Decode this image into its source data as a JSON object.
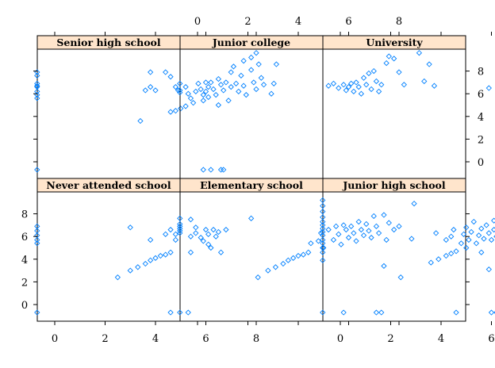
{
  "chart_data": {
    "type": "scatter",
    "layout": "trellis 3x2",
    "xlim": [
      -1,
      9.5
    ],
    "ylim": [
      -1,
      9.6
    ],
    "ticks": [
      0,
      2,
      4,
      6,
      8
    ],
    "marker": "diamond",
    "point_color": "#0080ff",
    "strip_color": "#ffe5cc",
    "panels": [
      {
        "title": "Senior high school",
        "points": [
          [
            -0.7,
            7.9
          ],
          [
            -0.7,
            7.6
          ],
          [
            -0.7,
            6.9
          ],
          [
            -0.7,
            6.7
          ],
          [
            -0.7,
            6.6
          ],
          [
            -0.7,
            6.2
          ],
          [
            -0.7,
            5.9
          ],
          [
            -0.7,
            5.6
          ],
          [
            -0.7,
            -0.7
          ],
          [
            3.4,
            3.6
          ],
          [
            4.6,
            4.4
          ],
          [
            4.8,
            4.5
          ],
          [
            5.0,
            4.7
          ],
          [
            5.2,
            4.9
          ],
          [
            3.6,
            6.3
          ],
          [
            3.8,
            6.6
          ],
          [
            4.0,
            6.3
          ],
          [
            3.8,
            7.9
          ],
          [
            4.4,
            7.9
          ],
          [
            4.6,
            7.5
          ],
          [
            4.8,
            6.6
          ],
          [
            4.9,
            6.3
          ],
          [
            5.2,
            6.6
          ],
          [
            5.3,
            6.0
          ],
          [
            5.4,
            5.6
          ],
          [
            5.5,
            5.2
          ],
          [
            5.6,
            6.2
          ],
          [
            5.7,
            6.9
          ],
          [
            5.8,
            6.4
          ],
          [
            5.9,
            5.9
          ],
          [
            5.9,
            5.4
          ],
          [
            6.0,
            7.0
          ],
          [
            6.0,
            6.2
          ],
          [
            6.1,
            6.6
          ],
          [
            6.1,
            5.7
          ],
          [
            6.2,
            7.0
          ],
          [
            6.3,
            6.4
          ],
          [
            6.4,
            5.9
          ],
          [
            6.5,
            5.0
          ],
          [
            6.5,
            7.3
          ],
          [
            6.6,
            6.8
          ],
          [
            6.7,
            6.3
          ],
          [
            6.8,
            7.0
          ],
          [
            6.9,
            5.4
          ],
          [
            7.0,
            6.6
          ],
          [
            7.0,
            7.9
          ],
          [
            7.1,
            8.4
          ],
          [
            7.2,
            6.9
          ],
          [
            7.3,
            6.2
          ],
          [
            7.4,
            7.6
          ],
          [
            7.5,
            8.9
          ],
          [
            7.5,
            6.7
          ],
          [
            7.6,
            5.9
          ],
          [
            7.8,
            9.2
          ],
          [
            7.8,
            8.1
          ],
          [
            7.9,
            7.0
          ],
          [
            8.0,
            6.4
          ],
          [
            8.0,
            9.6
          ],
          [
            8.1,
            8.6
          ],
          [
            8.2,
            7.4
          ],
          [
            8.3,
            6.8
          ],
          [
            8.6,
            6.0
          ],
          [
            8.8,
            8.6
          ],
          [
            8.7,
            6.9
          ],
          [
            5.9,
            -0.7
          ],
          [
            6.2,
            -0.7
          ],
          [
            6.6,
            -0.7
          ],
          [
            6.7,
            -0.7
          ]
        ]
      },
      {
        "title": "Junior college",
        "points": [
          [
            -0.7,
            6.9
          ],
          [
            -0.7,
            6.3
          ],
          [
            -0.7,
            6.1
          ],
          [
            5.2,
            6.7
          ],
          [
            5.4,
            6.9
          ],
          [
            5.6,
            6.5
          ],
          [
            5.8,
            6.8
          ],
          [
            5.9,
            6.3
          ],
          [
            6.0,
            6.6
          ],
          [
            6.1,
            6.9
          ],
          [
            6.2,
            6.2
          ],
          [
            6.3,
            7.0
          ],
          [
            6.4,
            6.6
          ],
          [
            6.5,
            6.0
          ],
          [
            6.6,
            7.4
          ],
          [
            6.7,
            6.8
          ],
          [
            6.8,
            7.8
          ],
          [
            6.9,
            6.4
          ],
          [
            7.0,
            8.0
          ],
          [
            7.1,
            7.1
          ],
          [
            7.2,
            6.2
          ],
          [
            7.3,
            6.8
          ],
          [
            7.5,
            8.7
          ],
          [
            7.6,
            9.3
          ],
          [
            7.8,
            9.1
          ],
          [
            8.0,
            7.9
          ],
          [
            8.2,
            6.8
          ],
          [
            8.8,
            9.6
          ],
          [
            9.2,
            8.6
          ],
          [
            9.4,
            6.7
          ],
          [
            9.0,
            7.1
          ]
        ]
      },
      {
        "title": "University",
        "points": [
          [
            5.9,
            6.5
          ],
          [
            6.4,
            9.0
          ],
          [
            6.4,
            6.7
          ],
          [
            6.6,
            7.8
          ],
          [
            6.7,
            6.9
          ],
          [
            6.9,
            9.3
          ],
          [
            6.9,
            8.3
          ],
          [
            7.0,
            7.0
          ],
          [
            7.5,
            7.7
          ],
          [
            7.5,
            8.3
          ],
          [
            7.6,
            6.9
          ],
          [
            7.9,
            9.3
          ],
          [
            7.8,
            7.0
          ],
          [
            8.0,
            8.3
          ],
          [
            8.2,
            8.3
          ],
          [
            8.3,
            6.9
          ],
          [
            8.6,
            8.3
          ],
          [
            8.8,
            9.4
          ],
          [
            6.4,
            -0.7
          ]
        ]
      },
      {
        "title": "Never attended school",
        "points": [
          [
            -0.7,
            6.9
          ],
          [
            -0.7,
            6.5
          ],
          [
            -0.7,
            6.1
          ],
          [
            -0.7,
            5.7
          ],
          [
            -0.7,
            5.4
          ],
          [
            -0.7,
            -0.7
          ],
          [
            2.5,
            2.4
          ],
          [
            3.0,
            3.0
          ],
          [
            3.3,
            3.3
          ],
          [
            3.6,
            3.6
          ],
          [
            3.8,
            3.9
          ],
          [
            4.0,
            4.1
          ],
          [
            4.2,
            4.3
          ],
          [
            4.4,
            4.4
          ],
          [
            4.6,
            4.6
          ],
          [
            3.0,
            6.8
          ],
          [
            3.8,
            5.7
          ],
          [
            4.4,
            6.2
          ],
          [
            4.6,
            6.6
          ],
          [
            4.8,
            6.2
          ],
          [
            4.8,
            5.7
          ],
          [
            5.4,
            6.0
          ],
          [
            5.4,
            7.5
          ],
          [
            5.6,
            6.8
          ],
          [
            5.6,
            6.3
          ],
          [
            5.8,
            5.9
          ],
          [
            5.9,
            5.6
          ],
          [
            6.0,
            6.6
          ],
          [
            6.1,
            6.2
          ],
          [
            6.1,
            5.3
          ],
          [
            6.2,
            5.0
          ],
          [
            6.3,
            6.6
          ],
          [
            6.4,
            6.0
          ],
          [
            6.5,
            6.4
          ],
          [
            6.6,
            4.6
          ],
          [
            6.8,
            6.6
          ],
          [
            7.8,
            7.6
          ],
          [
            5.4,
            4.6
          ],
          [
            4.6,
            -0.7
          ],
          [
            5.3,
            -0.7
          ]
        ]
      },
      {
        "title": "Elementary school",
        "points": [
          [
            -0.7,
            7.6
          ],
          [
            -0.7,
            7.1
          ],
          [
            -0.7,
            6.9
          ],
          [
            -0.7,
            6.7
          ],
          [
            -0.7,
            6.5
          ],
          [
            -0.7,
            6.3
          ],
          [
            -0.7,
            -0.7
          ],
          [
            2.4,
            2.4
          ],
          [
            2.8,
            3.0
          ],
          [
            3.1,
            3.3
          ],
          [
            3.4,
            3.6
          ],
          [
            3.6,
            3.9
          ],
          [
            3.8,
            4.1
          ],
          [
            4.0,
            4.3
          ],
          [
            4.2,
            4.4
          ],
          [
            4.4,
            4.6
          ],
          [
            4.5,
            5.4
          ],
          [
            4.8,
            5.6
          ],
          [
            4.9,
            6.3
          ],
          [
            5.0,
            5.0
          ],
          [
            5.2,
            6.6
          ],
          [
            5.4,
            5.7
          ],
          [
            5.5,
            6.9
          ],
          [
            5.6,
            6.2
          ],
          [
            5.7,
            5.3
          ],
          [
            5.8,
            7.0
          ],
          [
            5.9,
            6.6
          ],
          [
            6.0,
            5.9
          ],
          [
            6.1,
            6.9
          ],
          [
            6.2,
            6.3
          ],
          [
            6.3,
            5.6
          ],
          [
            6.4,
            7.3
          ],
          [
            6.5,
            6.6
          ],
          [
            6.6,
            6.1
          ],
          [
            6.7,
            7.1
          ],
          [
            6.8,
            6.5
          ],
          [
            6.9,
            5.9
          ],
          [
            7.0,
            7.8
          ],
          [
            7.1,
            6.9
          ],
          [
            7.2,
            6.3
          ],
          [
            7.4,
            7.9
          ],
          [
            7.4,
            3.4
          ],
          [
            7.5,
            5.7
          ],
          [
            7.6,
            7.2
          ],
          [
            7.8,
            6.6
          ],
          [
            8.0,
            6.9
          ],
          [
            8.5,
            5.8
          ],
          [
            8.6,
            8.9
          ],
          [
            5.8,
            -0.7
          ],
          [
            7.1,
            -0.7
          ],
          [
            7.3,
            -0.7
          ]
        ]
      },
      {
        "title": "Junior high school",
        "points": [
          [
            -0.7,
            9.2
          ],
          [
            -0.7,
            8.7
          ],
          [
            -0.7,
            8.2
          ],
          [
            -0.7,
            7.7
          ],
          [
            -0.7,
            7.3
          ],
          [
            -0.7,
            7.0
          ],
          [
            -0.7,
            6.7
          ],
          [
            -0.7,
            6.4
          ],
          [
            -0.7,
            6.1
          ],
          [
            -0.7,
            5.7
          ],
          [
            -0.7,
            5.4
          ],
          [
            -0.7,
            5.0
          ],
          [
            -0.7,
            4.6
          ],
          [
            -0.7,
            3.9
          ],
          [
            -0.7,
            -0.7
          ],
          [
            2.4,
            2.4
          ],
          [
            3.6,
            3.7
          ],
          [
            3.9,
            4.0
          ],
          [
            4.2,
            4.3
          ],
          [
            4.4,
            4.5
          ],
          [
            4.6,
            4.7
          ],
          [
            4.2,
            5.7
          ],
          [
            3.8,
            6.3
          ],
          [
            4.4,
            6.0
          ],
          [
            4.5,
            6.6
          ],
          [
            4.8,
            5.4
          ],
          [
            4.9,
            6.2
          ],
          [
            5.0,
            5.0
          ],
          [
            5.0,
            6.8
          ],
          [
            5.1,
            5.7
          ],
          [
            5.2,
            6.4
          ],
          [
            5.3,
            7.3
          ],
          [
            5.4,
            5.4
          ],
          [
            5.5,
            6.1
          ],
          [
            5.6,
            6.7
          ],
          [
            5.6,
            4.6
          ],
          [
            5.7,
            5.8
          ],
          [
            5.8,
            7.0
          ],
          [
            5.9,
            6.3
          ],
          [
            5.9,
            3.1
          ],
          [
            6.0,
            5.7
          ],
          [
            6.1,
            7.4
          ],
          [
            6.1,
            6.6
          ],
          [
            6.2,
            6.0
          ],
          [
            6.3,
            8.0
          ],
          [
            6.3,
            5.3
          ],
          [
            6.4,
            6.9
          ],
          [
            6.5,
            6.4
          ],
          [
            6.6,
            7.6
          ],
          [
            6.6,
            5.8
          ],
          [
            6.7,
            7.0
          ],
          [
            6.8,
            8.2
          ],
          [
            6.8,
            6.2
          ],
          [
            6.9,
            6.7
          ],
          [
            7.0,
            7.3
          ],
          [
            7.0,
            5.6
          ],
          [
            7.2,
            6.4
          ],
          [
            7.3,
            7.8
          ],
          [
            7.4,
            6.9
          ],
          [
            7.5,
            6.2
          ],
          [
            7.6,
            8.3
          ],
          [
            7.7,
            7.3
          ],
          [
            7.8,
            9.2
          ],
          [
            7.8,
            6.1
          ],
          [
            8.0,
            7.6
          ],
          [
            8.2,
            9.2
          ],
          [
            8.4,
            6.3
          ],
          [
            8.6,
            7.5
          ],
          [
            8.8,
            9.2
          ],
          [
            8.9,
            8.6
          ],
          [
            6.0,
            -0.7
          ],
          [
            6.2,
            -0.7
          ],
          [
            6.4,
            -0.7
          ],
          [
            6.6,
            -0.7
          ],
          [
            6.8,
            -0.7
          ],
          [
            7.2,
            -0.7
          ],
          [
            4.6,
            -0.7
          ]
        ]
      }
    ]
  }
}
